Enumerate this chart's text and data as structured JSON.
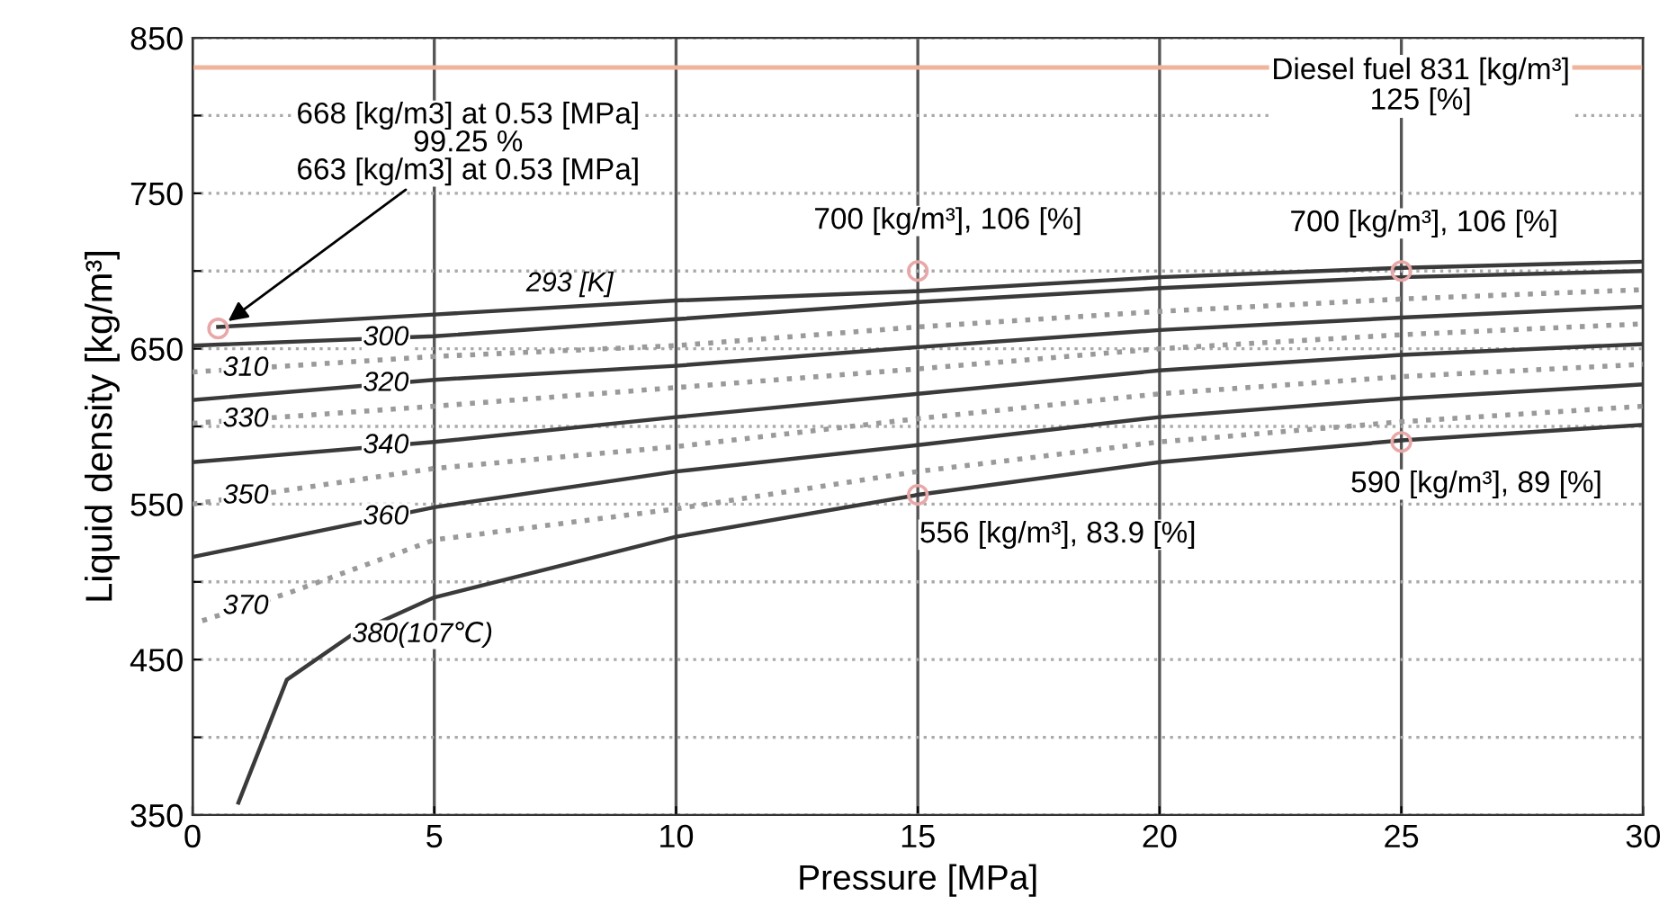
{
  "chart_data": {
    "type": "line",
    "xlabel": "Pressure [MPa]",
    "ylabel": "Liquid density [kg/m³]",
    "xlim": [
      0,
      30
    ],
    "xticks": [
      0,
      5,
      10,
      15,
      20,
      25,
      30
    ],
    "ylim": [
      350,
      850
    ],
    "yticks": [
      350,
      {
        "value": 400,
        "label": null
      },
      450,
      {
        "value": 500,
        "label": null
      },
      550,
      {
        "value": 600,
        "label": null
      },
      650,
      {
        "value": 700,
        "label": null
      },
      750,
      {
        "value": 800,
        "label": null
      },
      850
    ],
    "grid": true,
    "marker": "none",
    "series": [
      {
        "name": "293 [K]",
        "color": "#3a3a3a",
        "line_style": "solid",
        "x": [
          0.53,
          5,
          10,
          15,
          20,
          25,
          30
        ],
        "values": [
          664,
          672,
          681,
          687,
          696,
          702,
          706
        ]
      },
      {
        "name": "300",
        "color": "#3a3a3a",
        "line_style": "solid",
        "x": [
          0,
          5,
          10,
          15,
          20,
          25,
          30
        ],
        "values": [
          652,
          658,
          669,
          680,
          689,
          696,
          700
        ]
      },
      {
        "name": "310",
        "color": "#9a9a9a",
        "line_style": "dotted",
        "x": [
          0,
          5,
          10,
          15,
          20,
          25,
          30
        ],
        "values": [
          635,
          645,
          652,
          664,
          674,
          682,
          688
        ]
      },
      {
        "name": "320",
        "color": "#3a3a3a",
        "line_style": "solid",
        "x": [
          0,
          5,
          10,
          15,
          20,
          25,
          30
        ],
        "values": [
          617,
          630,
          639,
          651,
          662,
          670,
          677
        ]
      },
      {
        "name": "330",
        "color": "#9a9a9a",
        "line_style": "dotted",
        "x": [
          0,
          5,
          10,
          15,
          20,
          25,
          30
        ],
        "values": [
          602,
          613,
          625,
          637,
          650,
          659,
          666
        ]
      },
      {
        "name": "340",
        "color": "#3a3a3a",
        "line_style": "solid",
        "x": [
          0,
          5,
          10,
          15,
          20,
          25,
          30
        ],
        "values": [
          577,
          590,
          606,
          621,
          636,
          646,
          653
        ]
      },
      {
        "name": "350",
        "color": "#9a9a9a",
        "line_style": "dotted",
        "x": [
          0,
          5,
          10,
          15,
          20,
          25,
          30
        ],
        "values": [
          550,
          573,
          587,
          605,
          621,
          632,
          640
        ]
      },
      {
        "name": "360",
        "color": "#3a3a3a",
        "line_style": "solid",
        "x": [
          0,
          5,
          10,
          15,
          20,
          25,
          30
        ],
        "values": [
          516,
          548,
          571,
          588,
          606,
          618,
          627
        ]
      },
      {
        "name": "370",
        "color": "#9a9a9a",
        "line_style": "dotted",
        "x": [
          0.2,
          2,
          5,
          10,
          15,
          20,
          25,
          30
        ],
        "values": [
          475,
          493,
          527,
          547,
          571,
          590,
          603,
          613
        ]
      },
      {
        "name": "380(107℃)",
        "color": "#3a3a3a",
        "line_style": "solid",
        "x": [
          0.95,
          1.95,
          3.3,
          5,
          10,
          15,
          20,
          25,
          30
        ],
        "values": [
          358,
          437,
          466,
          490,
          529,
          556,
          577,
          591,
          601
        ]
      },
      {
        "type": "scatter",
        "color": "#e8a8a8",
        "marker": "circle",
        "x": [
          0.53,
          15,
          15,
          25,
          25
        ],
        "values": [
          663,
          700,
          556,
          700,
          590
        ]
      }
    ],
    "ref_lines": [
      {
        "axis": "y",
        "value": 831,
        "label": "Diesel fuel 831 [kg/m³]\n125 [%]",
        "color": "#f0b49c",
        "line_style": "solid"
      }
    ],
    "annotations": [
      {
        "text": "668 [kg/m3] at 0.53 [MPa]\n99.25 %\n663 [kg/m3] at 0.53 [MPa]",
        "x": 0.53,
        "y": 663
      },
      {
        "text": "700 [kg/m³], 106 [%]",
        "x": 15,
        "y": 700
      },
      {
        "text": "700 [kg/m³], 106 [%]",
        "x": 25,
        "y": 700
      },
      {
        "text": "556 [kg/m³], 83.9 [%]",
        "x": 15,
        "y": 556
      },
      {
        "text": "590 [kg/m³], 89 [%]",
        "x": 25,
        "y": 590
      }
    ]
  }
}
